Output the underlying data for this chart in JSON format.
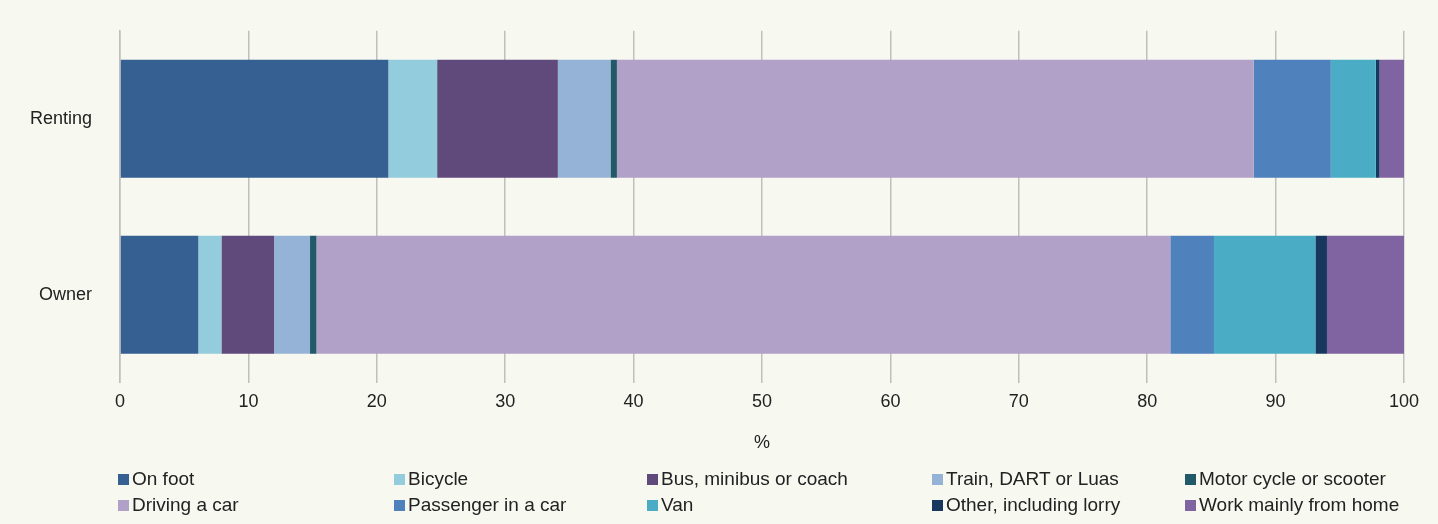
{
  "chart_data": {
    "type": "bar",
    "orientation": "horizontal",
    "stacked": true,
    "xlabel": "%",
    "categories": [
      "Renting",
      "Owner"
    ],
    "series": [
      {
        "name": "On foot",
        "color": "#366092",
        "values": [
          20.9,
          6.1
        ]
      },
      {
        "name": "Bicycle",
        "color": "#93cddd",
        "values": [
          3.8,
          1.8
        ]
      },
      {
        "name": "Bus, minibus or coach",
        "color": "#604a7b",
        "values": [
          9.4,
          4.1
        ]
      },
      {
        "name": "Train, DART or Luas",
        "color": "#95b3d7",
        "values": [
          4.1,
          2.8
        ]
      },
      {
        "name": "Motor cycle or scooter",
        "color": "#215968",
        "values": [
          0.5,
          0.5
        ]
      },
      {
        "name": "Driving a car",
        "color": "#b1a0c7",
        "values": [
          49.6,
          66.5
        ]
      },
      {
        "name": "Passenger in a car",
        "color": "#4f81bd",
        "values": [
          6.0,
          3.4
        ]
      },
      {
        "name": "Van",
        "color": "#4bacc6",
        "values": [
          3.5,
          7.9
        ]
      },
      {
        "name": "Other, including lorry",
        "color": "#17375e",
        "values": [
          0.3,
          0.9
        ]
      },
      {
        "name": "Work mainly from home",
        "color": "#8064a2",
        "values": [
          1.9,
          6.0
        ]
      }
    ],
    "xlim": [
      0,
      100
    ],
    "xticks": [
      0,
      10,
      20,
      30,
      40,
      50,
      60,
      70,
      80,
      90,
      100
    ],
    "grid": "x",
    "legend": "bottom"
  }
}
